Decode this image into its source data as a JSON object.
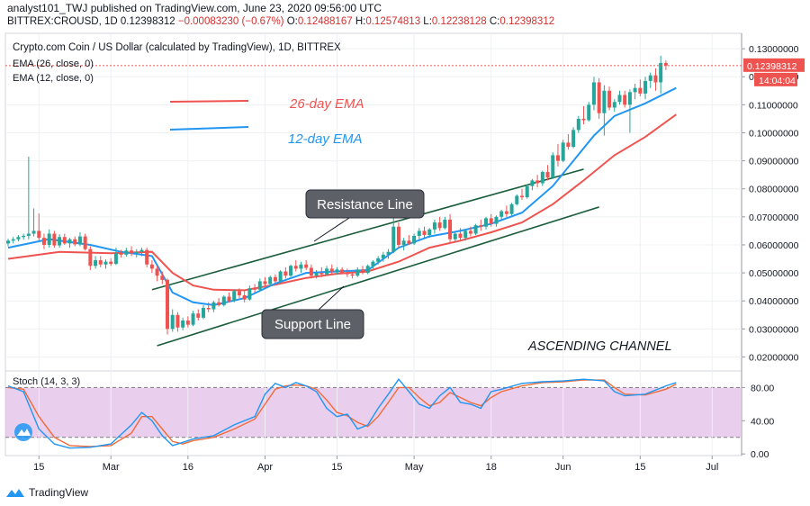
{
  "header": {
    "byline": "analyst101_TWJ published on TradingView.com, June 23, 2020 09:56:00 UTC",
    "symbol": "BITTREX:CROUSD, 1D",
    "last": "0.12398312",
    "change": "−0.00083230 (−0.67%)",
    "o_label": "O:",
    "o": "0.12488167",
    "h_label": "H:",
    "h": "0.12574813",
    "l_label": "L:",
    "l": "0.12238128",
    "c_label": "C:",
    "c": "0.12398312"
  },
  "chart_title": "Crypto.com Coin / US Dollar (calculated by TradingView), 1D, BITTREX",
  "indicators": [
    "EMA (26, close, 0)",
    "EMA (12, close, 0)"
  ],
  "stoch_label": "Stoch (14, 3, 3)",
  "price_badge": "0.12398312",
  "countdown_badge": "14:04:04",
  "annotations": {
    "ema26": "26-day EMA",
    "ema12": "12-day EMA",
    "resistance": "Resistance Line",
    "support": "Support Line",
    "channel": "ASCENDING CHANNEL"
  },
  "footer": {
    "brand": "TradingView"
  },
  "colors": {
    "up": "#26a69a",
    "down": "#ef5350",
    "ema26": "#ef5350",
    "ema12": "#2196f3",
    "stoch_k": "#2196f3",
    "stoch_d": "#ef6c3a",
    "stoch_band": "#e1bee7",
    "channel": "#1b5e3b"
  },
  "chart_data": {
    "type": "candlestick",
    "x_ticks": [
      "15",
      "Mar",
      "16",
      "Apr",
      "15",
      "May",
      "18",
      "Jun",
      "15",
      "Jul"
    ],
    "y_ticks": [
      "0.13000000",
      "0.12000000",
      "0.11000000",
      "0.10000000",
      "0.09000000",
      "0.08000000",
      "0.07000000",
      "0.06000000",
      "0.05000000",
      "0.04000000",
      "0.03000000",
      "0.02000000"
    ],
    "ylim": [
      0.015,
      0.1355
    ],
    "stoch_ticks": [
      "80.00",
      "40.00",
      "0.00"
    ],
    "stoch_ylim": [
      -2,
      100
    ],
    "stoch_band": [
      20,
      80
    ],
    "candles": [
      [
        0.0605,
        0.0622,
        0.0595,
        0.0615
      ],
      [
        0.0615,
        0.0628,
        0.0605,
        0.062
      ],
      [
        0.062,
        0.0635,
        0.0612,
        0.0628
      ],
      [
        0.0628,
        0.064,
        0.0618,
        0.0632
      ],
      [
        0.0632,
        0.0915,
        0.062,
        0.064
      ],
      [
        0.064,
        0.073,
        0.063,
        0.065
      ],
      [
        0.065,
        0.0712,
        0.0615,
        0.0625
      ],
      [
        0.0625,
        0.064,
        0.0585,
        0.06
      ],
      [
        0.06,
        0.0655,
        0.059,
        0.064
      ],
      [
        0.064,
        0.065,
        0.059,
        0.0598
      ],
      [
        0.0598,
        0.0638,
        0.059,
        0.0628
      ],
      [
        0.0628,
        0.064,
        0.06,
        0.0605
      ],
      [
        0.0605,
        0.0625,
        0.059,
        0.062
      ],
      [
        0.062,
        0.063,
        0.0595,
        0.0602
      ],
      [
        0.0602,
        0.0645,
        0.0595,
        0.063
      ],
      [
        0.063,
        0.064,
        0.058,
        0.0585
      ],
      [
        0.0585,
        0.0595,
        0.051,
        0.0525
      ],
      [
        0.0525,
        0.056,
        0.0515,
        0.0545
      ],
      [
        0.0545,
        0.056,
        0.052,
        0.053
      ],
      [
        0.053,
        0.0548,
        0.0515,
        0.054
      ],
      [
        0.054,
        0.0552,
        0.0525,
        0.0532
      ],
      [
        0.0532,
        0.059,
        0.0528,
        0.057
      ],
      [
        0.057,
        0.0582,
        0.0555,
        0.0565
      ],
      [
        0.0565,
        0.059,
        0.0558,
        0.058
      ],
      [
        0.058,
        0.0595,
        0.056,
        0.057
      ],
      [
        0.057,
        0.0585,
        0.0555,
        0.0575
      ],
      [
        0.0575,
        0.059,
        0.056,
        0.0582
      ],
      [
        0.0582,
        0.059,
        0.052,
        0.053
      ],
      [
        0.053,
        0.0545,
        0.05,
        0.0515
      ],
      [
        0.0515,
        0.0525,
        0.047,
        0.049
      ],
      [
        0.049,
        0.0505,
        0.046,
        0.0475
      ],
      [
        0.0475,
        0.048,
        0.028,
        0.03
      ],
      [
        0.03,
        0.037,
        0.029,
        0.035
      ],
      [
        0.035,
        0.036,
        0.029,
        0.0305
      ],
      [
        0.0305,
        0.034,
        0.0295,
        0.033
      ],
      [
        0.033,
        0.0345,
        0.0305,
        0.0315
      ],
      [
        0.0315,
        0.0365,
        0.031,
        0.0355
      ],
      [
        0.0355,
        0.037,
        0.033,
        0.034
      ],
      [
        0.034,
        0.0385,
        0.0335,
        0.0375
      ],
      [
        0.0375,
        0.0395,
        0.036,
        0.037
      ],
      [
        0.037,
        0.04,
        0.036,
        0.0395
      ],
      [
        0.0395,
        0.041,
        0.038,
        0.0385
      ],
      [
        0.0385,
        0.042,
        0.038,
        0.0415
      ],
      [
        0.0415,
        0.043,
        0.0395,
        0.04
      ],
      [
        0.04,
        0.044,
        0.0395,
        0.0435
      ],
      [
        0.0435,
        0.0445,
        0.041,
        0.042
      ],
      [
        0.042,
        0.0435,
        0.0395,
        0.0405
      ],
      [
        0.0405,
        0.0455,
        0.04,
        0.0445
      ],
      [
        0.0445,
        0.046,
        0.043,
        0.044
      ],
      [
        0.044,
        0.048,
        0.0435,
        0.047
      ],
      [
        0.047,
        0.0485,
        0.0455,
        0.046
      ],
      [
        0.046,
        0.049,
        0.0455,
        0.0485
      ],
      [
        0.0485,
        0.0495,
        0.0465,
        0.047
      ],
      [
        0.047,
        0.051,
        0.0465,
        0.0505
      ],
      [
        0.0505,
        0.052,
        0.048,
        0.049
      ],
      [
        0.049,
        0.053,
        0.0485,
        0.0525
      ],
      [
        0.0525,
        0.0545,
        0.0505,
        0.0515
      ],
      [
        0.0515,
        0.054,
        0.05,
        0.053
      ],
      [
        0.053,
        0.0545,
        0.051,
        0.0518
      ],
      [
        0.0518,
        0.053,
        0.048,
        0.049
      ],
      [
        0.049,
        0.051,
        0.048,
        0.05
      ],
      [
        0.05,
        0.052,
        0.0485,
        0.0495
      ],
      [
        0.0495,
        0.0525,
        0.049,
        0.0515
      ],
      [
        0.0515,
        0.053,
        0.0495,
        0.0505
      ],
      [
        0.0505,
        0.052,
        0.0495,
        0.0512
      ],
      [
        0.0512,
        0.052,
        0.0495,
        0.05
      ],
      [
        0.05,
        0.0515,
        0.0485,
        0.0495
      ],
      [
        0.0495,
        0.051,
        0.048,
        0.049
      ],
      [
        0.049,
        0.052,
        0.0485,
        0.0512
      ],
      [
        0.0512,
        0.0525,
        0.0495,
        0.05
      ],
      [
        0.05,
        0.053,
        0.0495,
        0.0525
      ],
      [
        0.0525,
        0.0545,
        0.0515,
        0.054
      ],
      [
        0.054,
        0.056,
        0.053,
        0.0552
      ],
      [
        0.0552,
        0.0575,
        0.054,
        0.0565
      ],
      [
        0.0565,
        0.0585,
        0.055,
        0.0575
      ],
      [
        0.0575,
        0.07,
        0.057,
        0.0665
      ],
      [
        0.0665,
        0.068,
        0.059,
        0.06
      ],
      [
        0.06,
        0.0625,
        0.058,
        0.0615
      ],
      [
        0.0615,
        0.0635,
        0.06,
        0.0605
      ],
      [
        0.0605,
        0.064,
        0.06,
        0.0632
      ],
      [
        0.0632,
        0.066,
        0.062,
        0.065
      ],
      [
        0.065,
        0.0665,
        0.0625,
        0.0635
      ],
      [
        0.0635,
        0.066,
        0.0625,
        0.0655
      ],
      [
        0.0655,
        0.069,
        0.064,
        0.068
      ],
      [
        0.068,
        0.07,
        0.065,
        0.066
      ],
      [
        0.066,
        0.07,
        0.0655,
        0.069
      ],
      [
        0.069,
        0.071,
        0.0605,
        0.062
      ],
      [
        0.062,
        0.065,
        0.061,
        0.064
      ],
      [
        0.064,
        0.066,
        0.0615,
        0.0625
      ],
      [
        0.0625,
        0.0655,
        0.0615,
        0.065
      ],
      [
        0.065,
        0.0665,
        0.063,
        0.064
      ],
      [
        0.064,
        0.0675,
        0.0635,
        0.067
      ],
      [
        0.067,
        0.069,
        0.065,
        0.0665
      ],
      [
        0.0665,
        0.07,
        0.0655,
        0.0695
      ],
      [
        0.0695,
        0.071,
        0.0665,
        0.0675
      ],
      [
        0.0675,
        0.0705,
        0.0665,
        0.07
      ],
      [
        0.07,
        0.0725,
        0.069,
        0.072
      ],
      [
        0.072,
        0.074,
        0.07,
        0.071
      ],
      [
        0.071,
        0.075,
        0.0705,
        0.0745
      ],
      [
        0.0745,
        0.078,
        0.074,
        0.0775
      ],
      [
        0.0775,
        0.08,
        0.076,
        0.077
      ],
      [
        0.077,
        0.0815,
        0.0765,
        0.081
      ],
      [
        0.081,
        0.0835,
        0.0795,
        0.083
      ],
      [
        0.083,
        0.085,
        0.0805,
        0.082
      ],
      [
        0.082,
        0.0865,
        0.081,
        0.086
      ],
      [
        0.086,
        0.0885,
        0.083,
        0.084
      ],
      [
        0.084,
        0.093,
        0.0835,
        0.092
      ],
      [
        0.092,
        0.096,
        0.088,
        0.09
      ],
      [
        0.09,
        0.0975,
        0.0895,
        0.0965
      ],
      [
        0.0965,
        0.0995,
        0.094,
        0.095
      ],
      [
        0.095,
        0.102,
        0.0945,
        0.101
      ],
      [
        0.101,
        0.106,
        0.1,
        0.105
      ],
      [
        0.105,
        0.1095,
        0.103,
        0.1045
      ],
      [
        0.1045,
        0.111,
        0.104,
        0.11
      ],
      [
        0.11,
        0.12,
        0.108,
        0.118
      ],
      [
        0.118,
        0.1195,
        0.105,
        0.107
      ],
      [
        0.107,
        0.117,
        0.099,
        0.115
      ],
      [
        0.115,
        0.1165,
        0.108,
        0.109
      ],
      [
        0.109,
        0.112,
        0.1075,
        0.111
      ],
      [
        0.111,
        0.115,
        0.11,
        0.1135
      ],
      [
        0.1135,
        0.115,
        0.109,
        0.11
      ],
      [
        0.11,
        0.1155,
        0.1,
        0.1145
      ],
      [
        0.1145,
        0.1175,
        0.112,
        0.116
      ],
      [
        0.116,
        0.119,
        0.113,
        0.114
      ],
      [
        0.114,
        0.12,
        0.112,
        0.1185
      ],
      [
        0.1185,
        0.1215,
        0.116,
        0.1205
      ],
      [
        0.1205,
        0.123,
        0.115,
        0.118
      ],
      [
        0.118,
        0.1275,
        0.114,
        0.1249
      ],
      [
        0.1249,
        0.1258,
        0.1224,
        0.124
      ]
    ],
    "ema26": [
      [
        0,
        0.055
      ],
      [
        10,
        0.0575
      ],
      [
        20,
        0.057
      ],
      [
        28,
        0.0575
      ],
      [
        32,
        0.05
      ],
      [
        36,
        0.0455
      ],
      [
        40,
        0.044
      ],
      [
        46,
        0.0438
      ],
      [
        52,
        0.0458
      ],
      [
        58,
        0.0482
      ],
      [
        64,
        0.0497
      ],
      [
        70,
        0.0505
      ],
      [
        76,
        0.054
      ],
      [
        82,
        0.059
      ],
      [
        88,
        0.0615
      ],
      [
        94,
        0.0645
      ],
      [
        100,
        0.068
      ],
      [
        106,
        0.0745
      ],
      [
        112,
        0.083
      ],
      [
        118,
        0.092
      ],
      [
        124,
        0.0985
      ],
      [
        130,
        0.1065
      ]
    ],
    "ema12": [
      [
        0,
        0.059
      ],
      [
        8,
        0.062
      ],
      [
        16,
        0.06
      ],
      [
        22,
        0.0575
      ],
      [
        28,
        0.056
      ],
      [
        32,
        0.043
      ],
      [
        36,
        0.0395
      ],
      [
        40,
        0.0385
      ],
      [
        46,
        0.041
      ],
      [
        52,
        0.0462
      ],
      [
        58,
        0.05
      ],
      [
        64,
        0.0505
      ],
      [
        70,
        0.051
      ],
      [
        76,
        0.059
      ],
      [
        82,
        0.063
      ],
      [
        88,
        0.065
      ],
      [
        94,
        0.0675
      ],
      [
        100,
        0.0715
      ],
      [
        106,
        0.081
      ],
      [
        110,
        0.09
      ],
      [
        114,
        0.099
      ],
      [
        118,
        0.106
      ],
      [
        124,
        0.1105
      ],
      [
        130,
        0.116
      ]
    ],
    "channel_upper": [
      [
        28,
        0.044
      ],
      [
        112,
        0.087
      ]
    ],
    "channel_lower": [
      [
        29,
        0.024
      ],
      [
        115,
        0.0735
      ]
    ],
    "stoch_k": [
      [
        0,
        82
      ],
      [
        3,
        75
      ],
      [
        6,
        30
      ],
      [
        9,
        12
      ],
      [
        12,
        7
      ],
      [
        16,
        8
      ],
      [
        20,
        12
      ],
      [
        24,
        35
      ],
      [
        26,
        50
      ],
      [
        28,
        40
      ],
      [
        30,
        22
      ],
      [
        32,
        10
      ],
      [
        34,
        14
      ],
      [
        36,
        18
      ],
      [
        40,
        22
      ],
      [
        44,
        35
      ],
      [
        48,
        45
      ],
      [
        50,
        72
      ],
      [
        52,
        85
      ],
      [
        54,
        80
      ],
      [
        56,
        86
      ],
      [
        58,
        82
      ],
      [
        60,
        75
      ],
      [
        62,
        55
      ],
      [
        64,
        45
      ],
      [
        66,
        48
      ],
      [
        68,
        30
      ],
      [
        70,
        35
      ],
      [
        72,
        55
      ],
      [
        74,
        72
      ],
      [
        76,
        90
      ],
      [
        78,
        75
      ],
      [
        80,
        60
      ],
      [
        82,
        55
      ],
      [
        84,
        70
      ],
      [
        86,
        80
      ],
      [
        88,
        62
      ],
      [
        90,
        60
      ],
      [
        92,
        55
      ],
      [
        94,
        75
      ],
      [
        96,
        78
      ],
      [
        100,
        85
      ],
      [
        104,
        87
      ],
      [
        108,
        88
      ],
      [
        112,
        90
      ],
      [
        116,
        88
      ],
      [
        118,
        75
      ],
      [
        120,
        70
      ],
      [
        124,
        72
      ],
      [
        128,
        82
      ],
      [
        130,
        86
      ]
    ],
    "stoch_d": [
      [
        0,
        80
      ],
      [
        3,
        78
      ],
      [
        6,
        45
      ],
      [
        9,
        20
      ],
      [
        12,
        10
      ],
      [
        16,
        9
      ],
      [
        20,
        10
      ],
      [
        24,
        25
      ],
      [
        26,
        45
      ],
      [
        28,
        45
      ],
      [
        30,
        30
      ],
      [
        32,
        15
      ],
      [
        34,
        12
      ],
      [
        36,
        16
      ],
      [
        40,
        20
      ],
      [
        44,
        30
      ],
      [
        48,
        42
      ],
      [
        50,
        60
      ],
      [
        52,
        78
      ],
      [
        54,
        82
      ],
      [
        56,
        83
      ],
      [
        58,
        82
      ],
      [
        60,
        78
      ],
      [
        62,
        65
      ],
      [
        64,
        50
      ],
      [
        66,
        46
      ],
      [
        68,
        38
      ],
      [
        70,
        33
      ],
      [
        72,
        45
      ],
      [
        74,
        62
      ],
      [
        76,
        80
      ],
      [
        78,
        80
      ],
      [
        80,
        68
      ],
      [
        82,
        58
      ],
      [
        84,
        62
      ],
      [
        86,
        74
      ],
      [
        88,
        68
      ],
      [
        90,
        62
      ],
      [
        92,
        58
      ],
      [
        94,
        68
      ],
      [
        96,
        75
      ],
      [
        100,
        82
      ],
      [
        104,
        86
      ],
      [
        108,
        87
      ],
      [
        112,
        89
      ],
      [
        116,
        89
      ],
      [
        118,
        80
      ],
      [
        120,
        72
      ],
      [
        124,
        71
      ],
      [
        128,
        78
      ],
      [
        130,
        84
      ]
    ]
  }
}
